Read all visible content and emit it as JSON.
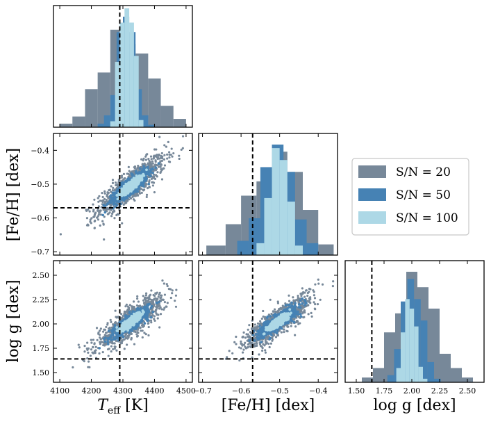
{
  "chart_data": {
    "type": "corner",
    "legend": {
      "placement": "right-middle",
      "entries": [
        {
          "label": "S/N = 20",
          "color": "#778899"
        },
        {
          "label": "S/N = 50",
          "color": "#4682b4"
        },
        {
          "label": "S/N = 100",
          "color": "#add8e6"
        }
      ]
    },
    "truth": {
      "teff": 4290,
      "feh": -0.57,
      "logg": 1.64
    },
    "parameters": [
      {
        "key": "teff",
        "label_main": "T",
        "label_sub": "eff",
        "label_unit": " [K]",
        "range": [
          4080,
          4520
        ],
        "ticks": [
          4100,
          4200,
          4300,
          4400,
          4500
        ],
        "tick_labels": [
          "4100",
          "4200",
          "4300",
          "4400",
          "4500"
        ],
        "hist": {
          "edges": [
            4100,
            4140,
            4180,
            4220,
            4260,
            4300,
            4340,
            4380,
            4420,
            4460,
            4500
          ],
          "sn20": [
            0.03,
            0.09,
            0.32,
            0.46,
            0.82,
            0.7,
            0.62,
            0.41,
            0.18,
            0.07
          ],
          "sn50_edges": [
            4220,
            4240,
            4260,
            4280,
            4300,
            4320,
            4340,
            4360,
            4380,
            4400
          ],
          "sn50": [
            0.03,
            0.1,
            0.27,
            0.8,
            0.93,
            0.8,
            0.32,
            0.1,
            0.02
          ],
          "sn100_edges": [
            4260,
            4275,
            4290,
            4305,
            4320,
            4335,
            4350,
            4365
          ],
          "sn100": [
            0.05,
            0.55,
            0.88,
            1.0,
            0.88,
            0.6,
            0.06
          ]
        }
      },
      {
        "key": "feh",
        "label_main": "[Fe/H] [dex]",
        "range": [
          -0.71,
          -0.35
        ],
        "ticks": [
          -0.7,
          -0.6,
          -0.5,
          -0.4
        ],
        "tick_labels": [
          "−0.7",
          "−0.6",
          "−0.5",
          "−0.4"
        ],
        "hist": {
          "edges": [
            -0.69,
            -0.64,
            -0.6,
            -0.56,
            -0.52,
            -0.48,
            -0.44,
            -0.4,
            -0.36
          ],
          "sn20": [
            0.08,
            0.26,
            0.5,
            0.62,
            0.87,
            0.7,
            0.38,
            0.09
          ],
          "sn50_edges": [
            -0.61,
            -0.58,
            -0.55,
            -0.52,
            -0.49,
            -0.46,
            -0.43,
            -0.4
          ],
          "sn50": [
            0.12,
            0.31,
            0.74,
            0.93,
            0.7,
            0.3,
            0.1
          ],
          "sn100_edges": [
            -0.56,
            -0.54,
            -0.52,
            -0.5,
            -0.48,
            -0.46,
            -0.44
          ],
          "sn100": [
            0.1,
            0.48,
            0.9,
            0.8,
            0.45,
            0.08
          ]
        }
      },
      {
        "key": "logg",
        "label_main": "log g",
        "label_unit": " [dex]",
        "range": [
          1.4,
          2.65
        ],
        "ticks": [
          1.5,
          1.75,
          2.0,
          2.25,
          2.5
        ],
        "tick_labels": [
          "1.50",
          "1.75",
          "2.00",
          "2.25",
          "2.50"
        ],
        "hist": {
          "edges": [
            1.55,
            1.65,
            1.75,
            1.85,
            1.95,
            2.05,
            2.15,
            2.25,
            2.35,
            2.45,
            2.55
          ],
          "sn20": [
            0.04,
            0.12,
            0.42,
            0.58,
            0.93,
            0.8,
            0.62,
            0.24,
            0.12,
            0.04
          ],
          "sn50_edges": [
            1.78,
            1.84,
            1.9,
            1.96,
            2.02,
            2.08,
            2.14,
            2.2,
            2.26
          ],
          "sn50": [
            0.06,
            0.28,
            0.68,
            0.87,
            0.7,
            0.52,
            0.17,
            0.03
          ],
          "sn100_edges": [
            1.86,
            1.9,
            1.94,
            1.98,
            2.02,
            2.06,
            2.1,
            2.14
          ],
          "sn100": [
            0.12,
            0.42,
            0.7,
            0.62,
            0.47,
            0.13,
            0.03
          ]
        }
      }
    ],
    "scatter_model": {
      "center": {
        "teff": 4325,
        "feh": -0.505,
        "logg": 2.02
      },
      "point_colors": {
        "sn20": "#778899",
        "sn50": "#4682b4",
        "sn100": "#add8e6"
      }
    }
  }
}
